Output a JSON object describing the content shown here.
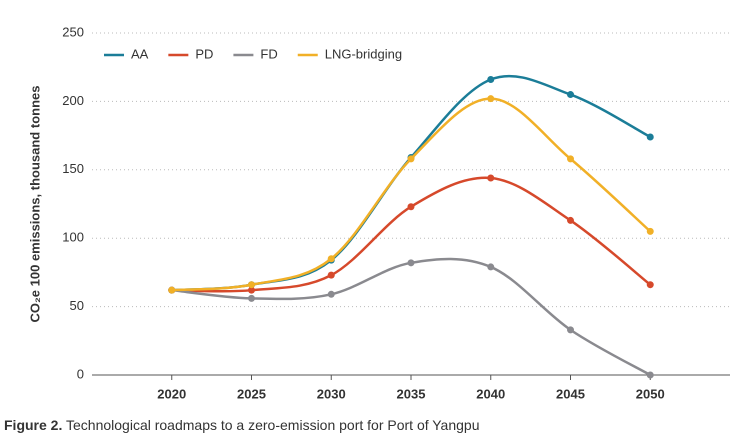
{
  "chart_data": {
    "type": "line",
    "y_label": "CO₂e 100 emissions, thousand tonnes",
    "figure_label": "Figure 2.",
    "caption": "Technological roadmaps to a zero-emission port for Port of Yangpu",
    "x": [
      2020,
      2025,
      2030,
      2035,
      2040,
      2045,
      2050
    ],
    "xlim": [
      2015,
      2055
    ],
    "xticks": [
      2020,
      2025,
      2030,
      2035,
      2040,
      2045,
      2050
    ],
    "ylim": [
      0,
      250
    ],
    "yticks": [
      0,
      50,
      100,
      150,
      200,
      250
    ],
    "grid": true,
    "legend": "top-left",
    "series": [
      {
        "name": "AA",
        "color": "#1b7d98",
        "values": [
          62,
          66,
          84,
          159,
          216,
          205,
          174
        ]
      },
      {
        "name": "PD",
        "color": "#d6492b",
        "values": [
          62,
          62,
          73,
          123,
          144,
          113,
          66
        ]
      },
      {
        "name": "FD",
        "color": "#8a8a8f",
        "values": [
          62,
          56,
          59,
          82,
          79,
          33,
          0
        ]
      },
      {
        "name": "LNG-bridging",
        "color": "#f1b027",
        "values": [
          62,
          66,
          85,
          158,
          202,
          158,
          105
        ]
      }
    ]
  }
}
